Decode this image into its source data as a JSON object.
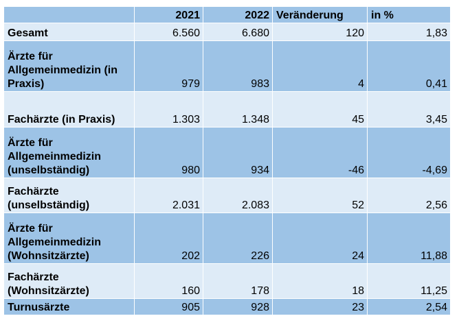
{
  "table": {
    "headers": [
      "",
      "2021",
      "2022",
      "Veränderung",
      "in %"
    ],
    "rows": [
      {
        "label": "Gesamt",
        "v2021": "6.560",
        "v2022": "6.680",
        "change": "120",
        "pct": "1,83"
      },
      {
        "label": "Ärzte für Allgemeinmedizin (in Praxis)",
        "v2021": "979",
        "v2022": "983",
        "change": "4",
        "pct": "0,41"
      },
      {
        "label": "Fachärzte (in Praxis)",
        "v2021": "1.303",
        "v2022": "1.348",
        "change": "45",
        "pct": "3,45"
      },
      {
        "label": "Ärzte für Allgemeinmedizin (unselbständig)",
        "v2021": "980",
        "v2022": "934",
        "change": "-46",
        "pct": "-4,69"
      },
      {
        "label": "Fachärzte (unselbständig)",
        "v2021": "2.031",
        "v2022": "2.083",
        "change": "52",
        "pct": "2,56"
      },
      {
        "label": "Ärzte für Allgemeinmedizin (Wohnsitzärzte)",
        "v2021": "202",
        "v2022": "226",
        "change": "24",
        "pct": "11,88"
      },
      {
        "label": "Fachärzte (Wohnsitzärzte)",
        "v2021": "160",
        "v2022": "178",
        "change": "18",
        "pct": "11,25"
      },
      {
        "label": "Turnusärzte",
        "v2021": "905",
        "v2022": "928",
        "change": "23",
        "pct": "2,54"
      }
    ]
  },
  "colors": {
    "dark_row": "#9dc3e6",
    "light_row": "#deebf7"
  }
}
